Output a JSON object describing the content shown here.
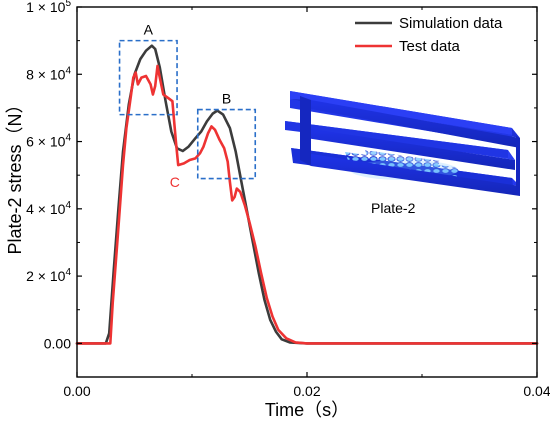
{
  "chart_data": {
    "type": "line",
    "xlabel": "Time（s）",
    "ylabel": "Plate-2 stress（N）",
    "xlim": [
      0,
      0.04
    ],
    "ylim": [
      -10000,
      100000
    ],
    "x_ticks": [
      0,
      0.02,
      0.04
    ],
    "x_tick_labels": [
      "0.00",
      "0.02",
      "0.04"
    ],
    "y_ticks": [
      0,
      20000,
      40000,
      60000,
      80000,
      100000
    ],
    "y_tick_labels": [
      {
        "base": "0.00",
        "exp": ""
      },
      {
        "base": "2 × 10",
        "exp": "4"
      },
      {
        "base": "4 × 10",
        "exp": "4"
      },
      {
        "base": "6 × 10",
        "exp": "4"
      },
      {
        "base": "8 × 10",
        "exp": "4"
      },
      {
        "base": "1 × 10",
        "exp": "5"
      }
    ],
    "legend_position": "top-right",
    "series": [
      {
        "name": "Simulation data",
        "color": "#3c3c3c",
        "points": [
          [
            0,
            0
          ],
          [
            0.0025,
            0
          ],
          [
            0.0028,
            3000
          ],
          [
            0.0032,
            22000
          ],
          [
            0.0036,
            40000
          ],
          [
            0.004,
            57000
          ],
          [
            0.0045,
            71000
          ],
          [
            0.005,
            80000
          ],
          [
            0.0055,
            84500
          ],
          [
            0.006,
            87000
          ],
          [
            0.0065,
            88500
          ],
          [
            0.0068,
            87500
          ],
          [
            0.0072,
            82000
          ],
          [
            0.0077,
            72000
          ],
          [
            0.0082,
            63000
          ],
          [
            0.0087,
            58000
          ],
          [
            0.0092,
            57200
          ],
          [
            0.0097,
            58500
          ],
          [
            0.0103,
            61000
          ],
          [
            0.0108,
            63000
          ],
          [
            0.0113,
            66000
          ],
          [
            0.0118,
            68300
          ],
          [
            0.0122,
            69200
          ],
          [
            0.0127,
            68000
          ],
          [
            0.0133,
            64000
          ],
          [
            0.0138,
            57000
          ],
          [
            0.0143,
            48000
          ],
          [
            0.0148,
            39000
          ],
          [
            0.0153,
            30000
          ],
          [
            0.0158,
            21000
          ],
          [
            0.0163,
            13000
          ],
          [
            0.0168,
            7000
          ],
          [
            0.0173,
            3500
          ],
          [
            0.0178,
            1200
          ],
          [
            0.0185,
            300
          ],
          [
            0.02,
            0
          ],
          [
            0.04,
            0
          ]
        ]
      },
      {
        "name": "Test data",
        "color": "#ee3333",
        "points": [
          [
            0,
            0
          ],
          [
            0.0029,
            0
          ],
          [
            0.0031,
            12000
          ],
          [
            0.0035,
            30000
          ],
          [
            0.004,
            53000
          ],
          [
            0.0043,
            64000
          ],
          [
            0.0047,
            74000
          ],
          [
            0.0049,
            79000
          ],
          [
            0.0051,
            80500
          ],
          [
            0.0053,
            77000
          ],
          [
            0.0056,
            79000
          ],
          [
            0.006,
            79500
          ],
          [
            0.0064,
            77000
          ],
          [
            0.0066,
            74000
          ],
          [
            0.0068,
            76500
          ],
          [
            0.007,
            82500
          ],
          [
            0.0072,
            79000
          ],
          [
            0.0075,
            74000
          ],
          [
            0.0079,
            73000
          ],
          [
            0.0083,
            72000
          ],
          [
            0.0086,
            60000
          ],
          [
            0.0088,
            53000
          ],
          [
            0.0093,
            53500
          ],
          [
            0.0098,
            54500
          ],
          [
            0.0103,
            55000
          ],
          [
            0.0107,
            56500
          ],
          [
            0.011,
            58500
          ],
          [
            0.0114,
            62500
          ],
          [
            0.0117,
            64500
          ],
          [
            0.012,
            63500
          ],
          [
            0.0124,
            60500
          ],
          [
            0.0128,
            58000
          ],
          [
            0.0131,
            54000
          ],
          [
            0.0133,
            48000
          ],
          [
            0.0135,
            42500
          ],
          [
            0.0137,
            43500
          ],
          [
            0.0139,
            46000
          ],
          [
            0.0142,
            45000
          ],
          [
            0.0146,
            41000
          ],
          [
            0.015,
            36000
          ],
          [
            0.0155,
            29000
          ],
          [
            0.016,
            21000
          ],
          [
            0.0165,
            13500
          ],
          [
            0.017,
            8000
          ],
          [
            0.0175,
            4000
          ],
          [
            0.0182,
            1500
          ],
          [
            0.019,
            300
          ],
          [
            0.02,
            0
          ],
          [
            0.04,
            0
          ]
        ]
      }
    ],
    "annotations": [
      {
        "label": "A",
        "color": "#000000",
        "box_x": [
          0.0037,
          0.0087
        ],
        "box_y": [
          68000,
          90000
        ]
      },
      {
        "label": "B",
        "color": "#000000",
        "box_x": [
          0.0105,
          0.0155
        ],
        "box_y": [
          49000,
          69500
        ]
      },
      {
        "label": "C",
        "color": "#ee3333",
        "at": [
          0.0085,
          46500
        ]
      }
    ],
    "inset_label": "Plate-2"
  }
}
